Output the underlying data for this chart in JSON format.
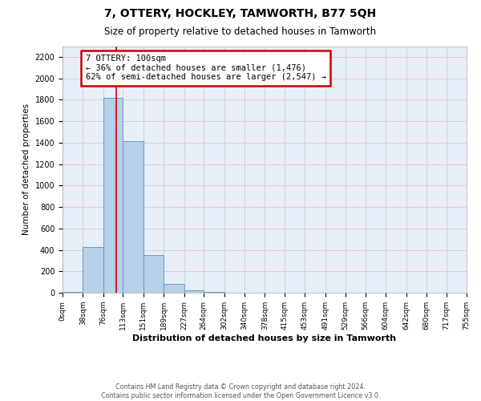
{
  "title": "7, OTTERY, HOCKLEY, TAMWORTH, B77 5QH",
  "subtitle": "Size of property relative to detached houses in Tamworth",
  "xlabel": "Distribution of detached houses by size in Tamworth",
  "ylabel": "Number of detached properties",
  "bar_color": "#b8d0e8",
  "bar_edge_color": "#6699cc",
  "grid_color": "#cccccc",
  "background_color": "#e8eef8",
  "red_line_x": 100,
  "annotation_title": "7 OTTERY: 100sqm",
  "annotation_line1": "← 36% of detached houses are smaller (1,476)",
  "annotation_line2": "62% of semi-detached houses are larger (2,547) →",
  "annotation_box_color": "#ffffff",
  "annotation_box_edge": "#cc0000",
  "footer_line1": "Contains HM Land Registry data © Crown copyright and database right 2024.",
  "footer_line2": "Contains public sector information licensed under the Open Government Licence v3.0.",
  "bin_edges": [
    0,
    38,
    76,
    113,
    151,
    189,
    227,
    264,
    302,
    340,
    378,
    415,
    453,
    491,
    529,
    566,
    604,
    642,
    680,
    717,
    755
  ],
  "bin_heights": [
    10,
    430,
    1820,
    1410,
    350,
    80,
    25,
    10,
    0,
    0,
    0,
    0,
    0,
    0,
    0,
    0,
    0,
    0,
    0,
    0
  ],
  "ylim": [
    0,
    2300
  ],
  "yticks": [
    0,
    200,
    400,
    600,
    800,
    1000,
    1200,
    1400,
    1600,
    1800,
    2000,
    2200
  ],
  "tick_labels": [
    "0sqm",
    "38sqm",
    "76sqm",
    "113sqm",
    "151sqm",
    "189sqm",
    "227sqm",
    "264sqm",
    "302sqm",
    "340sqm",
    "378sqm",
    "415sqm",
    "453sqm",
    "491sqm",
    "529sqm",
    "566sqm",
    "604sqm",
    "642sqm",
    "680sqm",
    "717sqm",
    "755sqm"
  ]
}
